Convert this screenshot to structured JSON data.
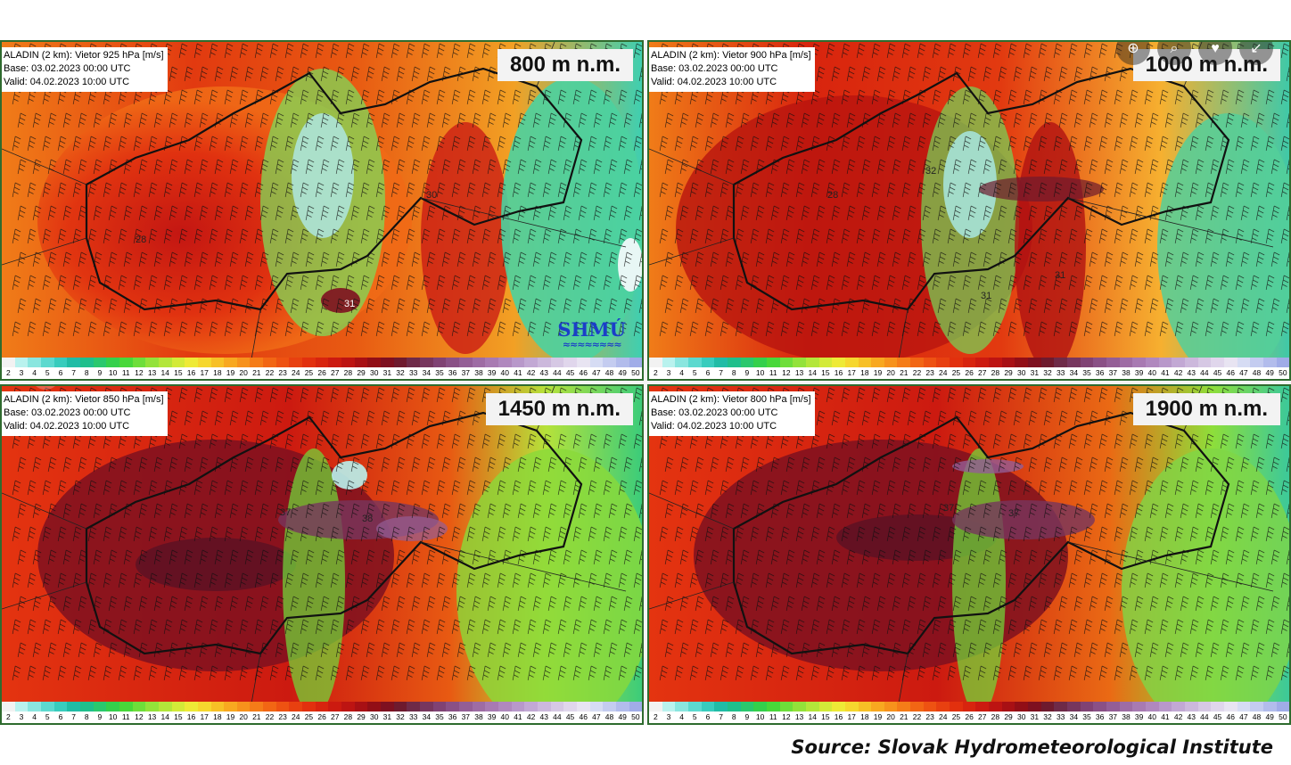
{
  "panels": [
    {
      "line1": "ALADIN (2 km): Vietor 925 hPa [m/s]",
      "base": "Base: 03.02.2023 00:00 UTC",
      "valid": "Valid: 04.02.2023 10:00 UTC",
      "height": "800 m n.m.",
      "map_labels": [
        "28",
        "30",
        "31"
      ]
    },
    {
      "line1": "ALADIN (2 km): Vietor 900 hPa [m/s]",
      "base": "Base: 03.02.2023 00:00 UTC",
      "valid": "Valid: 04.02.2023 10:00 UTC",
      "height": "1000 m n.m.",
      "map_labels": [
        "28",
        "32",
        "31",
        "31"
      ]
    },
    {
      "line1": "ALADIN (2 km): Vietor 850 hPa [m/s]",
      "base": "Base: 03.02.2023 00:00 UTC",
      "valid": "Valid: 04.02.2023 10:00 UTC",
      "height": "1450 m n.m.",
      "map_labels": [
        "37",
        "38"
      ]
    },
    {
      "line1": "ALADIN (2 km): Vietor 800 hPa [m/s]",
      "base": "Base: 03.02.2023 00:00 UTC",
      "valid": "Valid: 04.02.2023 10:00 UTC",
      "height": "1900 m n.m.",
      "map_labels": [
        "37",
        "37"
      ]
    }
  ],
  "scale": {
    "values": [
      "2",
      "3",
      "4",
      "5",
      "6",
      "7",
      "8",
      "9",
      "10",
      "11",
      "12",
      "13",
      "14",
      "15",
      "16",
      "17",
      "18",
      "19",
      "20",
      "21",
      "22",
      "23",
      "24",
      "25",
      "26",
      "27",
      "28",
      "29",
      "30",
      "31",
      "32",
      "33",
      "34",
      "35",
      "36",
      "37",
      "38",
      "39",
      "40",
      "41",
      "42",
      "43",
      "44",
      "45",
      "46",
      "47",
      "48",
      "49",
      "50"
    ],
    "colors": [
      "#f2f2f2",
      "#b9f2ee",
      "#8ae6df",
      "#5cd9cf",
      "#38ccbd",
      "#20bca6",
      "#1fbf8c",
      "#2ac86e",
      "#34d04c",
      "#48d83a",
      "#6ede3a",
      "#93e23a",
      "#b3e63a",
      "#d3ea38",
      "#eeea36",
      "#f6d72e",
      "#f7c026",
      "#f8a820",
      "#f7921c",
      "#f57c18",
      "#f26614",
      "#ee5212",
      "#e84010",
      "#e2300e",
      "#d8240e",
      "#cc1a10",
      "#bd1412",
      "#a81014",
      "#920e16",
      "#7e1020",
      "#6e1a2e",
      "#6e2a48",
      "#77365e",
      "#804274",
      "#8a5086",
      "#945e96",
      "#9e6ca4",
      "#a87ab2",
      "#b088be",
      "#b898ca",
      "#c2a8d4",
      "#ccb8dc",
      "#d6c8e4",
      "#e0d6ec",
      "#e8e4f2",
      "#d6dcf4",
      "#c4ccf0",
      "#b2bcec",
      "#a0ace8"
    ]
  },
  "logo": {
    "text": "SHMÚ",
    "waves": "≈≈≈≈≈≈≈≈"
  },
  "source": "Source: Slovak Hydrometeorological Institute"
}
